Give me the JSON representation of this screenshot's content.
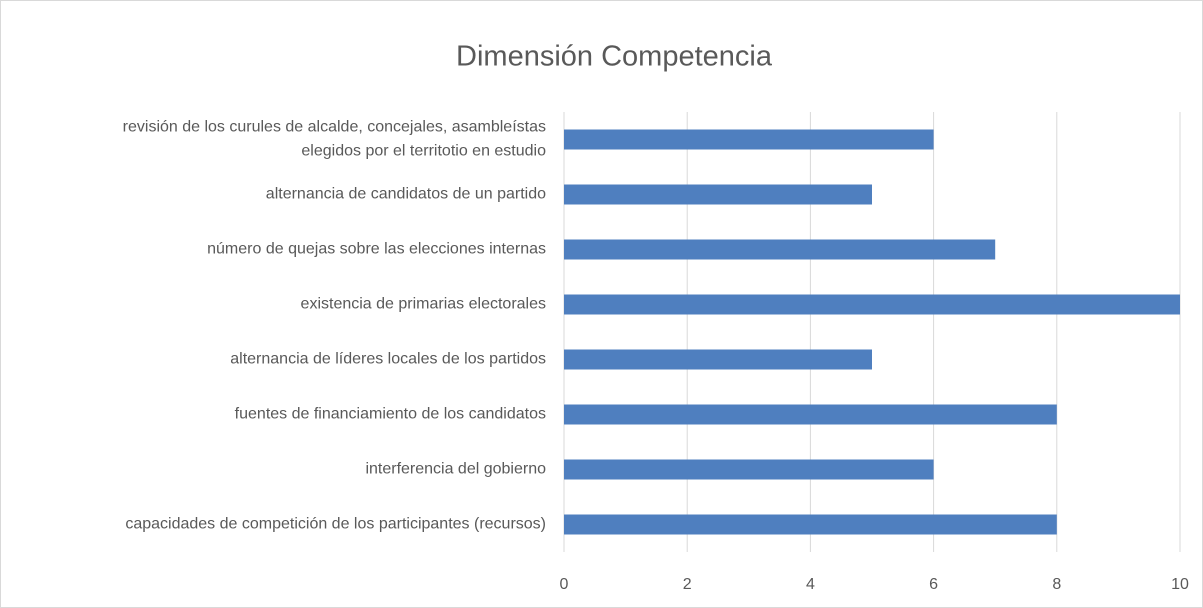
{
  "chart_data": {
    "type": "bar",
    "orientation": "horizontal",
    "title": "Dimensión Competencia",
    "categories": [
      "revisión de los curules de alcalde, concejales, asambleístas\nelegidos por el territotio en estudio",
      "alternancia de candidatos de un partido",
      "número de quejas sobre las elecciones internas",
      "existencia de primarias electorales",
      "alternancia de líderes locales de los partidos",
      "fuentes de financiamiento de los candidatos",
      "interferencia del gobierno",
      "capacidades de competición de los participantes (recursos)"
    ],
    "values": [
      6,
      5,
      7,
      10,
      5,
      8,
      6,
      8
    ],
    "color": "#4f7fbf",
    "xlim": [
      0,
      10
    ],
    "xticks": [
      0,
      2,
      4,
      6,
      8,
      10
    ],
    "grid": true
  }
}
